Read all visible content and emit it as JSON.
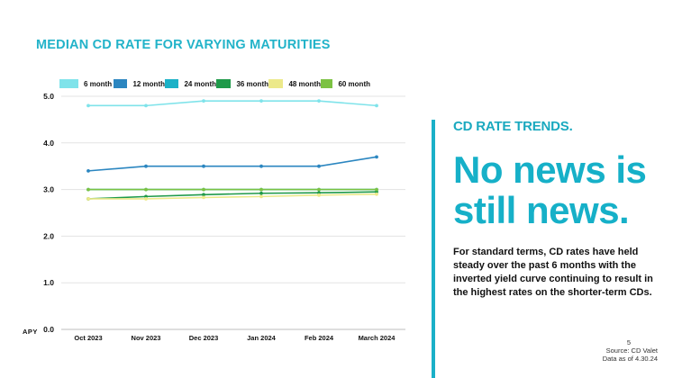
{
  "slide": {
    "title": "MEDIAN CD RATE FOR VARYING MATURITIES",
    "kicker": "CD RATE TRENDS.",
    "headline": "No news is still news.",
    "body": "For standard terms, CD rates have held steady over the past 6 months with the inverted yield curve continuing to result in the highest rates on the shorter-term CDs.",
    "page_number": "5",
    "source": "Source: CD Valet",
    "data_as_of": "Data as of 4.30.24",
    "accent_color": "#1ab0c8"
  },
  "chart_data": {
    "type": "line",
    "title": "MEDIAN CD RATE FOR VARYING MATURITIES",
    "xlabel": "",
    "ylabel": "APY",
    "categories": [
      "Oct 2023",
      "Nov 2023",
      "Dec 2023",
      "Jan 2024",
      "Feb 2024",
      "March 2024"
    ],
    "ylim": [
      0,
      5
    ],
    "yticks": [
      "0.0",
      "1.0",
      "2.0",
      "3.0",
      "4.0",
      "5.0"
    ],
    "grid": true,
    "legend_position": "top",
    "series": [
      {
        "name": "6 month",
        "color": "#7fe3ea",
        "values": [
          4.8,
          4.8,
          4.9,
          4.9,
          4.9,
          4.8
        ]
      },
      {
        "name": "12 month",
        "color": "#2b86c0",
        "values": [
          3.4,
          3.5,
          3.5,
          3.5,
          3.5,
          3.7
        ]
      },
      {
        "name": "24 month",
        "color": "#1bb1c7",
        "values": [
          3.0,
          3.0,
          3.0,
          3.0,
          3.0,
          3.0
        ]
      },
      {
        "name": "36 month",
        "color": "#1f9a4a",
        "values": [
          2.8,
          2.85,
          2.89,
          2.92,
          2.93,
          2.95
        ]
      },
      {
        "name": "48 month",
        "color": "#ece98a",
        "values": [
          2.8,
          2.8,
          2.83,
          2.85,
          2.88,
          2.9
        ]
      },
      {
        "name": "60 month",
        "color": "#7cc242",
        "values": [
          3.0,
          3.0,
          3.0,
          3.0,
          3.0,
          3.0
        ]
      }
    ]
  }
}
